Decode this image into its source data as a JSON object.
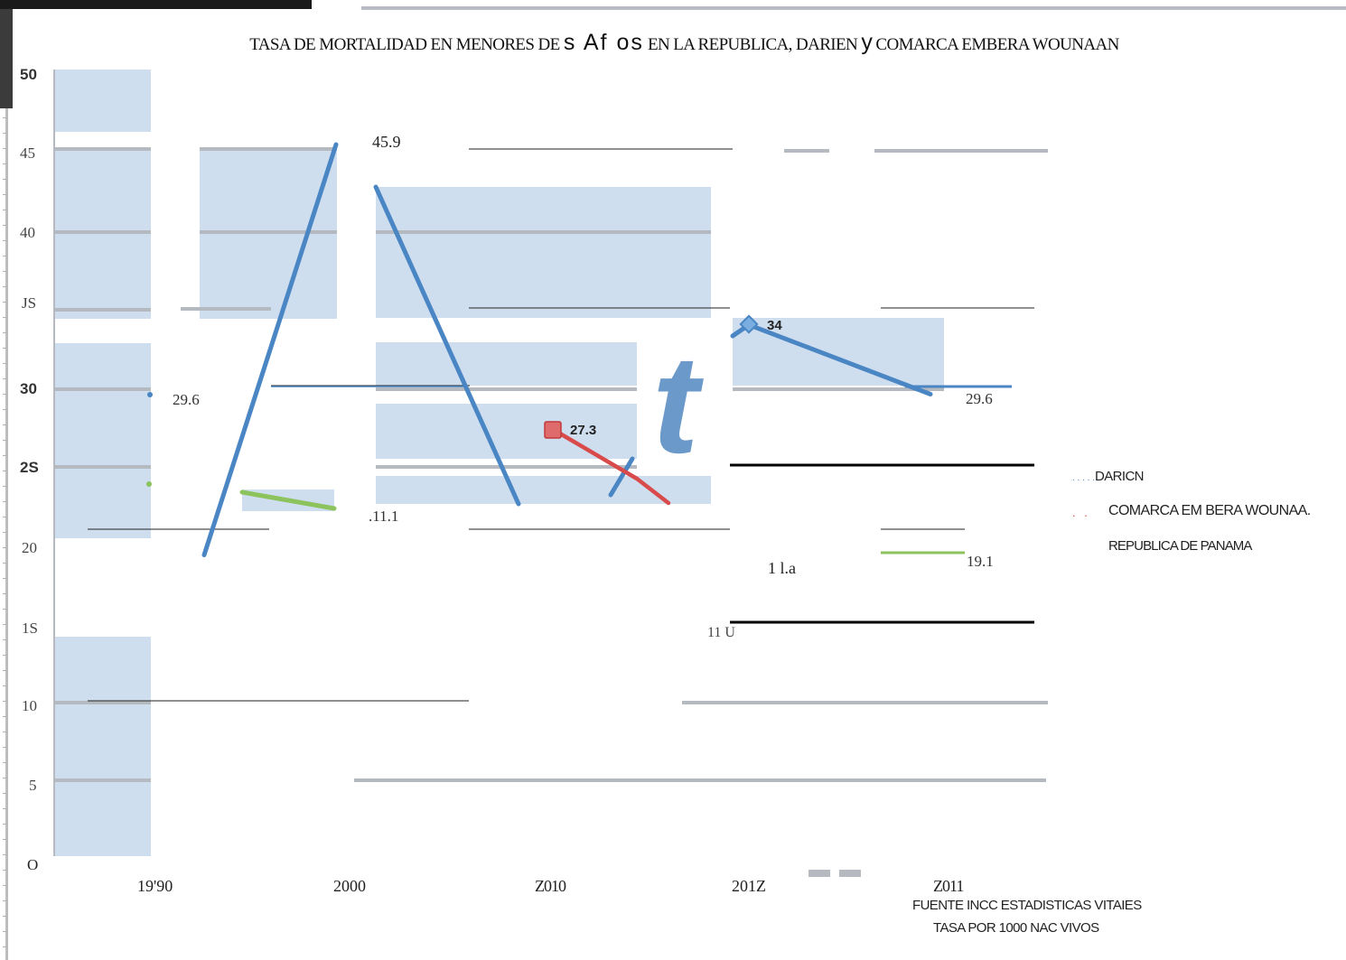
{
  "chart_data": {
    "type": "line",
    "title_parts": [
      "TASA DE MORTALIDAD EN MENORES DE ",
      "s Af os",
      " EN LA REPUBLICA, DARIEN ",
      "y",
      " COMARCA EMBERA WOUNAAN"
    ],
    "y_tick_labels": [
      "O",
      "5",
      "10",
      "1S",
      "20",
      "2S",
      "30",
      "JS",
      "40",
      "45",
      "50"
    ],
    "x_tick_labels": [
      "19'90",
      "2000",
      "Z010",
      "201Z",
      "Z011"
    ],
    "ylim": [
      0,
      50
    ],
    "grid": true,
    "legend_position": "right",
    "legend": [
      "DARICN",
      "COMARCA EM BERA WOUNAA.",
      "REPUBLICA DE PANAMA"
    ],
    "legend_prefix_darien": ". . . . .",
    "legend_prefix_comarca": ". .",
    "series": [
      {
        "name": "DARICN",
        "color": "#4a86c4",
        "values": [
          29.6,
          45.9,
          18.6,
          34,
          29.6
        ]
      },
      {
        "name": "COMARCA EM BERA WOUNAA.",
        "color": "#d94a4a",
        "values": [
          null,
          null,
          27.3,
          null,
          null
        ]
      },
      {
        "name": "REPUBLICA DE PANAMA",
        "color": "#8cc35c",
        "values": [
          24,
          22,
          null,
          null,
          19.1
        ]
      }
    ],
    "data_labels": {
      "v1": "45.9",
      "v2": "29.6",
      "v3": "34",
      "v4": "29.6",
      "v5": "27.3",
      "v6": ".11.1",
      "v7": "1 l.a",
      "v8": "19.1",
      "v9": "11 U"
    },
    "decor_glyph": "t",
    "footer": {
      "source": "FUENTE INCC ESTADISTICAS VITAIES",
      "note": "TASA POR 1000 NAC VIVOS"
    }
  }
}
